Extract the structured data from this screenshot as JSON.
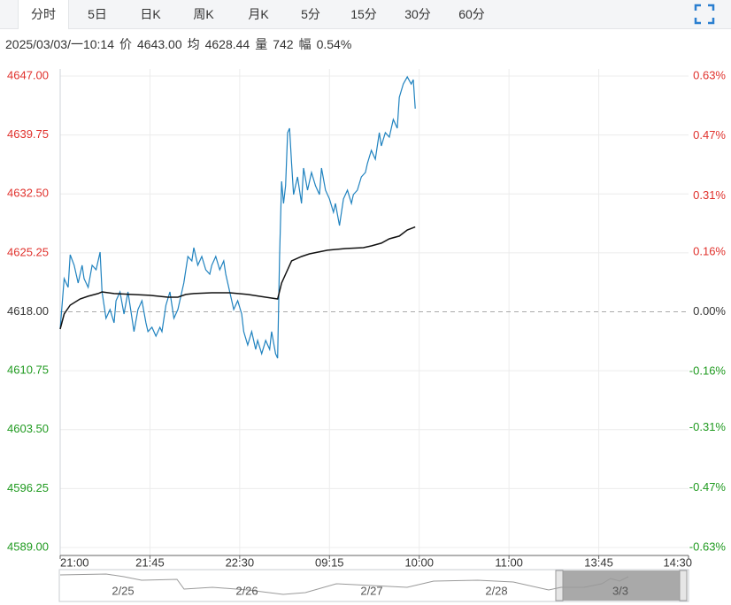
{
  "tabs": [
    "分时",
    "5日",
    "日K",
    "周K",
    "月K",
    "5分",
    "15分",
    "30分",
    "60分"
  ],
  "active_tab": 0,
  "info": {
    "datetime": "2025/03/03/一10:14",
    "price_label": "价",
    "price": "4643.00",
    "avg_label": "均",
    "avg": "4628.44",
    "volume_label": "量",
    "volume": "742",
    "range_label": "幅",
    "range": "0.54%"
  },
  "navigator": {
    "dates": [
      "2/25",
      "2/26",
      "2/27",
      "2/28",
      "3/3"
    ]
  },
  "chart_data": {
    "type": "line",
    "xlim": [
      0,
      315
    ],
    "xticks": [
      {
        "value": 0,
        "label": "21:00"
      },
      {
        "value": 45,
        "label": "21:45"
      },
      {
        "value": 90,
        "label": "22:30"
      },
      {
        "value": 135,
        "label": "09:15"
      },
      {
        "value": 180,
        "label": "10:00"
      },
      {
        "value": 225,
        "label": "11:00"
      },
      {
        "value": 270,
        "label": "13:45"
      },
      {
        "value": 315,
        "label": "14:30"
      }
    ],
    "ylim": [
      4589,
      4647
    ],
    "yticks": [
      {
        "value": 4647,
        "label": "4647.00"
      },
      {
        "value": 4639.75,
        "label": "4639.75"
      },
      {
        "value": 4632.5,
        "label": "4632.50"
      },
      {
        "value": 4625.25,
        "label": "4625.25"
      },
      {
        "value": 4618,
        "label": "4618.00"
      },
      {
        "value": 4610.75,
        "label": "4610.75"
      },
      {
        "value": 4603.5,
        "label": "4603.50"
      },
      {
        "value": 4596.25,
        "label": "4596.25"
      },
      {
        "value": 4589,
        "label": "4589.00"
      }
    ],
    "y2lim": [
      -0.63,
      0.63
    ],
    "y2ticks": [
      {
        "value": 0.63,
        "label": "0.63%"
      },
      {
        "value": 0.47,
        "label": "0.47%"
      },
      {
        "value": 0.31,
        "label": "0.31%"
      },
      {
        "value": 0.16,
        "label": "0.16%"
      },
      {
        "value": 0,
        "label": "0.00%"
      },
      {
        "value": -0.16,
        "label": "-0.16%"
      },
      {
        "value": -0.31,
        "label": "-0.31%"
      },
      {
        "value": -0.47,
        "label": "-0.47%"
      },
      {
        "value": -0.63,
        "label": "-0.63%"
      }
    ],
    "reference_line": 4618,
    "up_color": "#e0312c",
    "down_color": "#1f9a1f",
    "flat_color": "#333333",
    "grid": true,
    "series": [
      {
        "color": "#1f82bf",
        "x": [
          0,
          2,
          4,
          5,
          7,
          9,
          11,
          12,
          14,
          16,
          18,
          20,
          21,
          23,
          25,
          27,
          28,
          30,
          32,
          34,
          35,
          37,
          39,
          41,
          43,
          44,
          46,
          48,
          50,
          51,
          53,
          55,
          57,
          59,
          60,
          62,
          64,
          66,
          67,
          69,
          71,
          73,
          75,
          76,
          78,
          80,
          82,
          83,
          85,
          87,
          89,
          91,
          92,
          94,
          96,
          98,
          99,
          101,
          103,
          105,
          106,
          108,
          109,
          110,
          111,
          112,
          113,
          114,
          115,
          116,
          117,
          119,
          121,
          122,
          124,
          126,
          128,
          130,
          131,
          133,
          135,
          137,
          138,
          140,
          142,
          144,
          146,
          147,
          149,
          151,
          153,
          154,
          156,
          158,
          160,
          161,
          163,
          165,
          167,
          169,
          170,
          172,
          174,
          176,
          177,
          178
        ],
        "values": [
          4615.88,
          4622.08,
          4621.0,
          4625.02,
          4623.72,
          4621.54,
          4623.72,
          4622.08,
          4621.0,
          4623.72,
          4623.17,
          4625.35,
          4620.45,
          4617.19,
          4618.28,
          4616.64,
          4619.36,
          4620.45,
          4617.73,
          4620.45,
          4618.82,
          4615.56,
          4618.28,
          4619.36,
          4616.64,
          4615.56,
          4616.1,
          4615.01,
          4616.1,
          4615.56,
          4618.82,
          4620.45,
          4617.19,
          4618.28,
          4619.36,
          4621.54,
          4624.8,
          4624.26,
          4625.89,
          4623.72,
          4624.8,
          4623.17,
          4622.63,
          4623.72,
          4624.8,
          4623.17,
          4624.26,
          4622.63,
          4620.45,
          4618.28,
          4619.36,
          4617.73,
          4615.56,
          4613.92,
          4615.56,
          4613.38,
          4614.47,
          4612.84,
          4614.47,
          4613.38,
          4615.56,
          4612.84,
          4612.29,
          4624.8,
          4634.05,
          4631.33,
          4633.51,
          4640.04,
          4640.58,
          4636.23,
          4632.42,
          4634.6,
          4631.33,
          4635.68,
          4632.96,
          4635.14,
          4633.51,
          4632.42,
          4635.68,
          4632.96,
          4631.88,
          4630.24,
          4631.33,
          4628.61,
          4631.88,
          4632.96,
          4631.33,
          4632.42,
          4632.96,
          4634.6,
          4635.14,
          4636.23,
          4637.86,
          4636.77,
          4640.04,
          4638.4,
          4640.04,
          4639.49,
          4641.67,
          4640.58,
          4644.39,
          4646.02,
          4646.9,
          4646.02,
          4646.56,
          4643.0
        ]
      },
      {
        "color": "#111111",
        "x": [
          0,
          2,
          5,
          10,
          14,
          19,
          21,
          27,
          36,
          45,
          54,
          59,
          63,
          67,
          76,
          85,
          94,
          103,
          109,
          111,
          113,
          116,
          121,
          125,
          134,
          143,
          152,
          156,
          161,
          165,
          170,
          174,
          178
        ],
        "values": [
          4615.88,
          4617.73,
          4618.82,
          4619.58,
          4619.91,
          4620.24,
          4620.45,
          4620.24,
          4620.13,
          4620.02,
          4619.8,
          4619.8,
          4620.13,
          4620.24,
          4620.34,
          4620.34,
          4620.13,
          4619.8,
          4619.58,
          4621.54,
          4622.63,
          4624.26,
          4624.8,
          4625.13,
          4625.57,
          4625.78,
          4625.89,
          4626.11,
          4626.44,
          4626.98,
          4627.31,
          4628.07,
          4628.44
        ]
      }
    ]
  }
}
